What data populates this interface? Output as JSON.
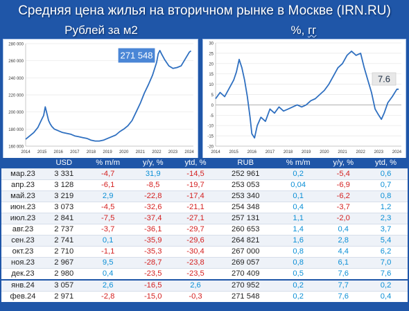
{
  "title": "Средняя цена жилья на вторичном рынке в Москве (IRN.RU)",
  "left_chart": {
    "subtitle": "Рублей за м2",
    "callout": "271 548"
  },
  "right_chart": {
    "subtitle_main": "%, ",
    "subtitle_unit": "гг",
    "callout": "7.6"
  },
  "chart_data": [
    {
      "type": "line",
      "title": "Рублей за м2",
      "xlim": [
        2014,
        2024.25
      ],
      "ylim": [
        160000,
        280000
      ],
      "x_ticks": [
        "2014",
        "2015",
        "2016",
        "2017",
        "2018",
        "2019",
        "2020",
        "2021",
        "2022",
        "2023",
        "2024"
      ],
      "y_ticks": [
        "160 000",
        "180 000",
        "200 000",
        "220 000",
        "240 000",
        "260 000",
        "280 000"
      ],
      "color": "#2e6fc0",
      "annotation": "271 548",
      "x": [
        2014.0,
        2014.25,
        2014.5,
        2014.75,
        2015.0,
        2015.1,
        2015.2,
        2015.3,
        2015.4,
        2015.5,
        2015.6,
        2015.75,
        2016.0,
        2016.25,
        2016.5,
        2016.75,
        2017.0,
        2017.25,
        2017.5,
        2017.75,
        2018.0,
        2018.25,
        2018.5,
        2018.75,
        2019.0,
        2019.25,
        2019.5,
        2019.75,
        2020.0,
        2020.25,
        2020.5,
        2020.75,
        2021.0,
        2021.25,
        2021.5,
        2021.75,
        2022.0,
        2022.1,
        2022.2,
        2022.3,
        2022.5,
        2022.75,
        2023.0,
        2023.25,
        2023.5,
        2023.75,
        2024.0,
        2024.1
      ],
      "y": [
        168000,
        172000,
        176000,
        182000,
        192000,
        196000,
        206000,
        198000,
        190000,
        186000,
        183000,
        180000,
        178000,
        176000,
        175000,
        174000,
        172000,
        171000,
        170000,
        169000,
        167000,
        166000,
        166000,
        167000,
        169000,
        171000,
        173000,
        177000,
        180000,
        184000,
        190000,
        200000,
        210000,
        222000,
        232000,
        243000,
        258000,
        268000,
        272000,
        268000,
        261000,
        254000,
        251000,
        252000,
        254000,
        262000,
        270000,
        271548
      ]
    },
    {
      "type": "line",
      "title": "%, гг",
      "xlim": [
        2014,
        2024.25
      ],
      "ylim": [
        -20,
        30
      ],
      "x_ticks": [
        "2014",
        "2015",
        "2016",
        "2017",
        "2018",
        "2019",
        "2020",
        "2021",
        "2022",
        "2023",
        "2024"
      ],
      "y_ticks": [
        "-20",
        "-15",
        "-10",
        "-5",
        "0",
        "5",
        "10",
        "15",
        "20",
        "25",
        "30"
      ],
      "color": "#2e6fc0",
      "annotation": "7.6",
      "x": [
        2014.0,
        2014.25,
        2014.5,
        2014.75,
        2015.0,
        2015.15,
        2015.3,
        2015.45,
        2015.6,
        2015.75,
        2015.9,
        2016.0,
        2016.15,
        2016.3,
        2016.5,
        2016.75,
        2017.0,
        2017.25,
        2017.5,
        2017.75,
        2018.0,
        2018.25,
        2018.5,
        2018.75,
        2019.0,
        2019.25,
        2019.5,
        2019.75,
        2020.0,
        2020.25,
        2020.5,
        2020.75,
        2021.0,
        2021.25,
        2021.5,
        2021.75,
        2022.0,
        2022.2,
        2022.4,
        2022.6,
        2022.8,
        2023.0,
        2023.15,
        2023.3,
        2023.5,
        2023.75,
        2024.0,
        2024.1
      ],
      "y": [
        3,
        6,
        4,
        8,
        12,
        16,
        22,
        18,
        12,
        4,
        -6,
        -14,
        -16,
        -10,
        -6,
        -8,
        -2,
        -4,
        -1,
        -3,
        -2,
        -1,
        0,
        -1,
        0,
        2,
        3,
        5,
        7,
        10,
        14,
        18,
        20,
        24,
        26,
        24,
        25,
        18,
        12,
        6,
        -2,
        -5,
        -7,
        -4,
        1,
        4,
        7.6,
        7.6
      ]
    }
  ],
  "table": {
    "headers": [
      "",
      "USD",
      "% m/m",
      "y/y, %",
      "ytd, %",
      "RUB",
      "% m/m",
      "y/y, %",
      "ytd, %"
    ],
    "rows": [
      {
        "month": "мар.23",
        "usd": "3 331",
        "usd_mm": "-4,7",
        "usd_yy": "31,9",
        "usd_ytd": "-14,5",
        "rub": "252 961",
        "rub_mm": "0,2",
        "rub_yy": "-5,4",
        "rub_ytd": "0,6"
      },
      {
        "month": "апр.23",
        "usd": "3 128",
        "usd_mm": "-6,1",
        "usd_yy": "-8,5",
        "usd_ytd": "-19,7",
        "rub": "253 053",
        "rub_mm": "0,04",
        "rub_yy": "-6,9",
        "rub_ytd": "0,7"
      },
      {
        "month": "май.23",
        "usd": "3 219",
        "usd_mm": "2,9",
        "usd_yy": "-22,8",
        "usd_ytd": "-17,4",
        "rub": "253 340",
        "rub_mm": "0,1",
        "rub_yy": "-6,2",
        "rub_ytd": "0,8"
      },
      {
        "month": "июн.23",
        "usd": "3 073",
        "usd_mm": "-4,5",
        "usd_yy": "-32,6",
        "usd_ytd": "-21,1",
        "rub": "254 348",
        "rub_mm": "0,4",
        "rub_yy": "-3,7",
        "rub_ytd": "1,2"
      },
      {
        "month": "июл.23",
        "usd": "2 841",
        "usd_mm": "-7,5",
        "usd_yy": "-37,4",
        "usd_ytd": "-27,1",
        "rub": "257 131",
        "rub_mm": "1,1",
        "rub_yy": "-2,0",
        "rub_ytd": "2,3"
      },
      {
        "month": "авг.23",
        "usd": "2 737",
        "usd_mm": "-3,7",
        "usd_yy": "-36,1",
        "usd_ytd": "-29,7",
        "rub": "260 653",
        "rub_mm": "1,4",
        "rub_yy": "0,4",
        "rub_ytd": "3,7"
      },
      {
        "month": "сен.23",
        "usd": "2 741",
        "usd_mm": "0,1",
        "usd_yy": "-35,9",
        "usd_ytd": "-29,6",
        "rub": "264 821",
        "rub_mm": "1,6",
        "rub_yy": "2,8",
        "rub_ytd": "5,4"
      },
      {
        "month": "окт.23",
        "usd": "2 710",
        "usd_mm": "-1,1",
        "usd_yy": "-35,3",
        "usd_ytd": "-30,4",
        "rub": "267 000",
        "rub_mm": "0,8",
        "rub_yy": "4,4",
        "rub_ytd": "6,2"
      },
      {
        "month": "ноя.23",
        "usd": "2 967",
        "usd_mm": "9,5",
        "usd_yy": "-28,7",
        "usd_ytd": "-23,8",
        "rub": "269 057",
        "rub_mm": "0,8",
        "rub_yy": "6,1",
        "rub_ytd": "7,0"
      },
      {
        "month": "дек.23",
        "usd": "2 980",
        "usd_mm": "0,4",
        "usd_yy": "-23,5",
        "usd_ytd": "-23,5",
        "rub": "270 409",
        "rub_mm": "0,5",
        "rub_yy": "7,6",
        "rub_ytd": "7,6"
      },
      {
        "month": "янв.24",
        "usd": "3 057",
        "usd_mm": "2,6",
        "usd_yy": "-16,5",
        "usd_ytd": "2,6",
        "rub": "270 952",
        "rub_mm": "0,2",
        "rub_yy": "7,7",
        "rub_ytd": "0,2"
      },
      {
        "month": "фев.24",
        "usd": "2 971",
        "usd_mm": "-2,8",
        "usd_yy": "-15,0",
        "usd_ytd": "-0,3",
        "rub": "271 548",
        "rub_mm": "0,2",
        "rub_yy": "7,6",
        "rub_ytd": "0,4"
      }
    ]
  },
  "colors": {
    "background": "#1f56a8",
    "line": "#2e6fc0",
    "negative": "#d42020",
    "positive": "#0a8fd6"
  }
}
